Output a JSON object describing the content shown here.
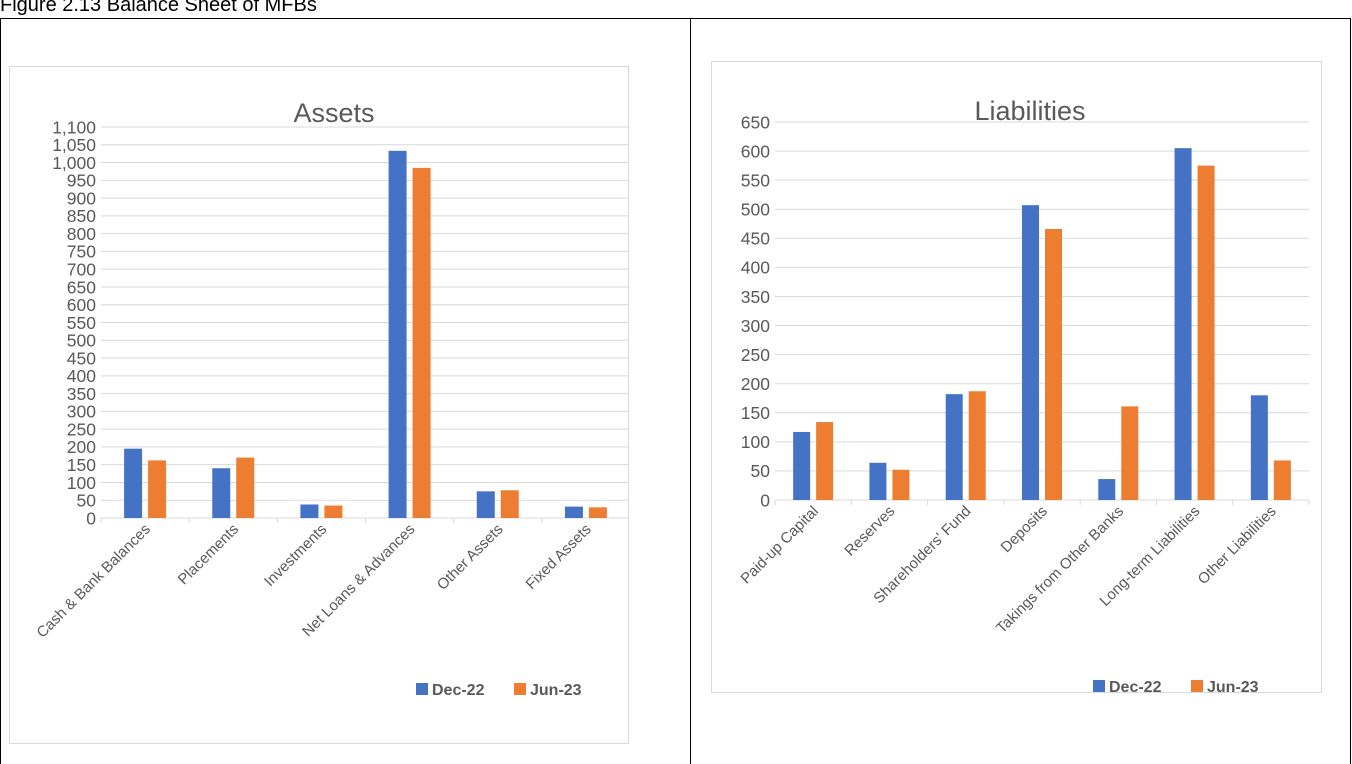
{
  "caption": "Figure 2.13 Balance Sheet of MFBs",
  "colors": {
    "dec22": "#4472C4",
    "jun23": "#ED7D31",
    "grid": "#d9d9d9",
    "text": "#595959"
  },
  "chart_data": [
    {
      "type": "bar",
      "title": "Assets",
      "categories": [
        "Cash & Bank Balances",
        "Placements",
        "Investments",
        "Net Loans & Advances",
        "Other Assets",
        "Fixed Assets"
      ],
      "series": [
        {
          "name": "Dec-22",
          "values": [
            195,
            140,
            38,
            1033,
            75,
            32
          ]
        },
        {
          "name": "Jun-23",
          "values": [
            162,
            170,
            35,
            985,
            78,
            30
          ]
        }
      ],
      "ylim": [
        0,
        1100
      ],
      "ytick_step": 50,
      "yticks": [
        "0",
        "50",
        "100",
        "150",
        "200",
        "250",
        "300",
        "350",
        "400",
        "450",
        "500",
        "550",
        "600",
        "650",
        "700",
        "750",
        "800",
        "850",
        "900",
        "950",
        "1,000",
        "1,050",
        "1,100"
      ],
      "grid": true,
      "legend": "bottom-right"
    },
    {
      "type": "bar",
      "title": "Liabilities",
      "categories": [
        "Paid-up Capital",
        "Reserves",
        "Shareholders' Fund",
        "Deposits",
        "Takings from Other Banks",
        "Long-term Liabilities",
        "Other Liabilities"
      ],
      "series": [
        {
          "name": "Dec-22",
          "values": [
            117,
            64,
            182,
            507,
            36,
            605,
            180
          ]
        },
        {
          "name": "Jun-23",
          "values": [
            134,
            52,
            187,
            466,
            161,
            575,
            68
          ]
        }
      ],
      "ylim": [
        0,
        650
      ],
      "ytick_step": 50,
      "yticks": [
        "0",
        "50",
        "100",
        "150",
        "200",
        "250",
        "300",
        "350",
        "400",
        "450",
        "500",
        "550",
        "600",
        "650"
      ],
      "grid": true,
      "legend": "bottom-right"
    }
  ]
}
